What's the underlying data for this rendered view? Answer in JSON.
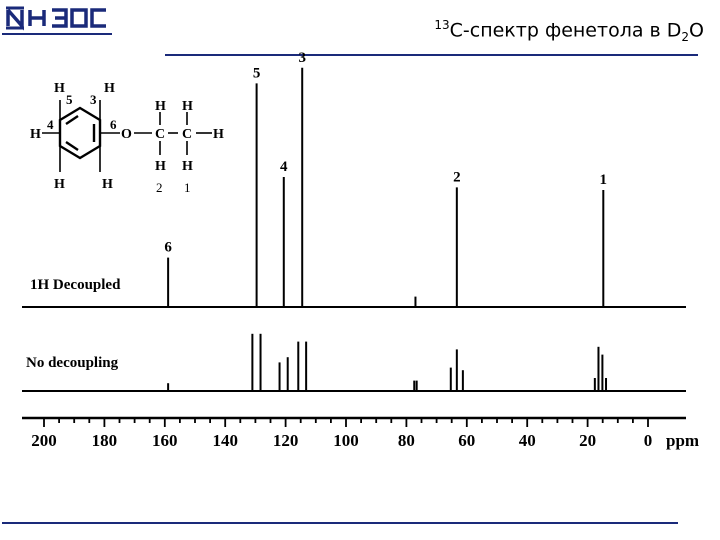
{
  "header": {
    "logo_text": "ИНЭОС",
    "title_pre": "C-спектр фенетола в D",
    "title_sup": "13",
    "title_sub": "2",
    "title_post": "O"
  },
  "colors": {
    "accent": "#1a2a7a",
    "spectrum": "#000000"
  },
  "structure": {
    "atoms_H": "H",
    "atom_O": "O",
    "atom_C": "C",
    "numbers": [
      "5",
      "3",
      "4",
      "6",
      "2",
      "1"
    ]
  },
  "chart_data": {
    "type": "line",
    "xlabel": "ppm",
    "xlim": [
      200,
      0
    ],
    "x_ticks": [
      200,
      180,
      160,
      140,
      120,
      100,
      80,
      60,
      40,
      20,
      0
    ],
    "series": [
      {
        "name": "1H Decoupled",
        "peaks": [
          {
            "ppm": 158.9,
            "height": 0.19,
            "label": "6"
          },
          {
            "ppm": 129.6,
            "height": 0.86,
            "label": "5"
          },
          {
            "ppm": 120.6,
            "height": 0.5,
            "label": "4"
          },
          {
            "ppm": 114.5,
            "height": 0.92,
            "label": "3"
          },
          {
            "ppm": 77.0,
            "height": 0.04,
            "label": ""
          },
          {
            "ppm": 63.3,
            "height": 0.46,
            "label": "2"
          },
          {
            "ppm": 14.8,
            "height": 0.45,
            "label": "1"
          }
        ]
      },
      {
        "name": "No decoupling",
        "peaks": [
          {
            "ppm": 158.9,
            "height": 0.03
          },
          {
            "ppm": 131.0,
            "height": 0.22
          },
          {
            "ppm": 128.3,
            "height": 0.22
          },
          {
            "ppm": 122.0,
            "height": 0.11
          },
          {
            "ppm": 119.3,
            "height": 0.13
          },
          {
            "ppm": 115.8,
            "height": 0.19
          },
          {
            "ppm": 113.2,
            "height": 0.19
          },
          {
            "ppm": 77.4,
            "height": 0.04
          },
          {
            "ppm": 76.6,
            "height": 0.04
          },
          {
            "ppm": 65.3,
            "height": 0.09
          },
          {
            "ppm": 63.3,
            "height": 0.16
          },
          {
            "ppm": 61.3,
            "height": 0.08
          },
          {
            "ppm": 17.6,
            "height": 0.05
          },
          {
            "ppm": 16.4,
            "height": 0.17
          },
          {
            "ppm": 15.1,
            "height": 0.14
          },
          {
            "ppm": 13.9,
            "height": 0.05
          }
        ]
      }
    ]
  }
}
